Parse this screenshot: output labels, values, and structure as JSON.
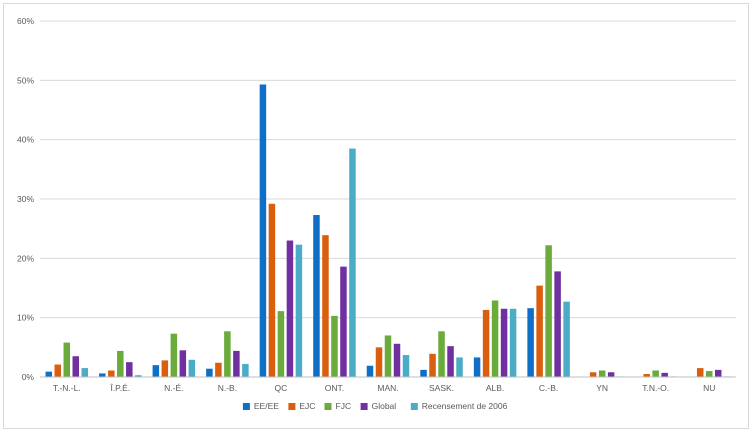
{
  "chart_data": {
    "type": "bar",
    "categories": [
      "T.-N.-L.",
      "Î.P.É.",
      "N.-É.",
      "N.-B.",
      "QC",
      "ONT.",
      "MAN.",
      "SASK.",
      "ALB.",
      "C.-B.",
      "YN",
      "T.N.-O.",
      "NU"
    ],
    "ylim": [
      0,
      60
    ],
    "yticks": [
      "0%",
      "10%",
      "20%",
      "30%",
      "40%",
      "50%",
      "60%"
    ],
    "ytick_values": [
      0,
      10,
      20,
      30,
      40,
      50,
      60
    ],
    "grid": true,
    "legend_position": "bottom",
    "series": [
      {
        "name": "EE/EE",
        "color": "#0f6fc6",
        "values": [
          0.9,
          0.6,
          2.0,
          1.4,
          49.3,
          27.3,
          1.9,
          1.2,
          3.3,
          11.6,
          0.0,
          0.0,
          0.0
        ]
      },
      {
        "name": "EJC",
        "color": "#d95f0e",
        "values": [
          2.1,
          1.1,
          2.8,
          2.4,
          29.2,
          23.9,
          5.0,
          3.9,
          11.3,
          15.4,
          0.8,
          0.5,
          1.5
        ]
      },
      {
        "name": "FJC",
        "color": "#6aab3c",
        "values": [
          5.8,
          4.4,
          7.3,
          7.7,
          11.1,
          10.3,
          7.0,
          7.7,
          12.9,
          22.2,
          1.1,
          1.1,
          1.0
        ]
      },
      {
        "name": "Global",
        "color": "#7030a0",
        "values": [
          3.5,
          2.5,
          4.5,
          4.4,
          23.0,
          18.6,
          5.6,
          5.2,
          11.5,
          17.8,
          0.8,
          0.7,
          1.2
        ]
      },
      {
        "name": "Recensement de 2006",
        "color": "#4bacc6",
        "values": [
          1.5,
          0.3,
          2.9,
          2.2,
          22.3,
          38.5,
          3.7,
          3.3,
          11.5,
          12.7,
          0.1,
          0.1,
          0.1
        ]
      }
    ]
  }
}
